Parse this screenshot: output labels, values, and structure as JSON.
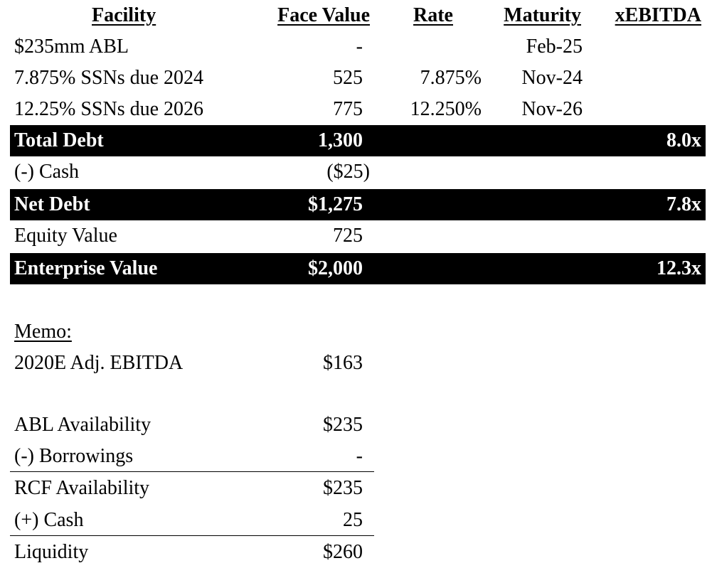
{
  "header": {
    "facility": "Facility",
    "face_value": "Face Value",
    "rate": "Rate",
    "maturity": "Maturity",
    "xebitda": "xEBITDA"
  },
  "facilities": [
    {
      "name": "$235mm ABL",
      "face": "-",
      "rate": "",
      "maturity": "Feb-25"
    },
    {
      "name": "7.875% SSNs due 2024",
      "face": "525",
      "rate": "7.875%",
      "maturity": "Nov-24"
    },
    {
      "name": "12.25% SSNs due 2026",
      "face": "775",
      "rate": "12.250%",
      "maturity": "Nov-26"
    }
  ],
  "total_debt": {
    "label": "Total Debt",
    "face": "1,300",
    "xebitda": "8.0x"
  },
  "cash": {
    "label": "(-) Cash",
    "face": "($25)"
  },
  "net_debt": {
    "label": "Net Debt",
    "face": "$1,275",
    "xebitda": "7.8x"
  },
  "equity_value": {
    "label": "Equity Value",
    "face": "725"
  },
  "enterprise_value": {
    "label": "Enterprise Value",
    "face": "$2,000",
    "xebitda": "12.3x"
  },
  "memo": {
    "title": "Memo:",
    "ebitda": {
      "label": "2020E Adj. EBITDA",
      "value": "$163"
    },
    "abl_availability": {
      "label": "ABL Availability",
      "value": "$235"
    },
    "borrowings": {
      "label": "(-) Borrowings",
      "value": "-"
    },
    "rcf_availability": {
      "label": "RCF Availability",
      "value": "$235"
    },
    "plus_cash": {
      "label": "(+) Cash",
      "value": "25"
    },
    "liquidity": {
      "label": "Liquidity",
      "value": "$260"
    }
  }
}
